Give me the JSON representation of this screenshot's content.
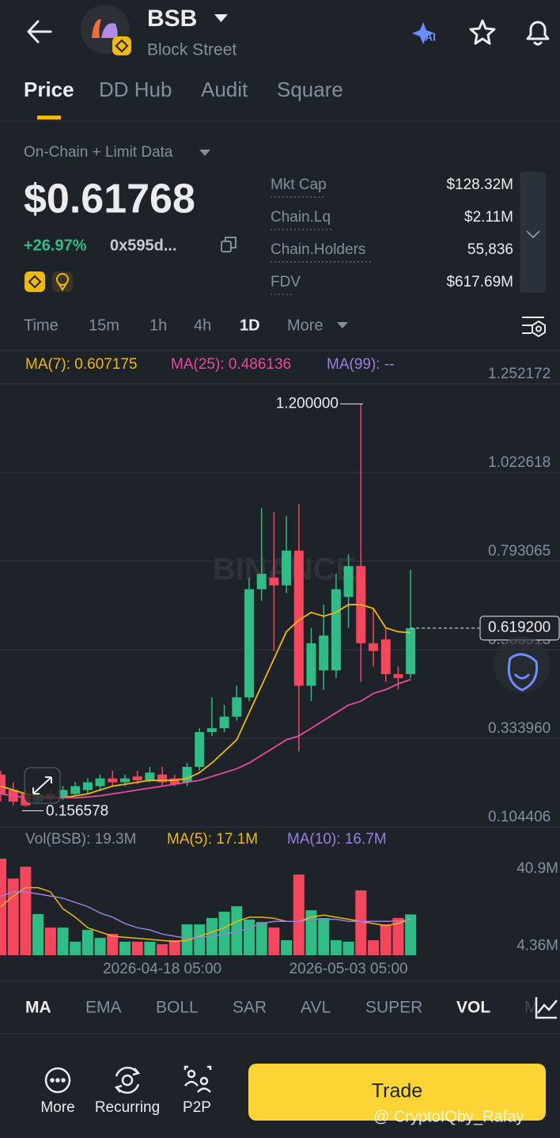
{
  "header": {
    "title": "BSB",
    "subtitle": "Block Street"
  },
  "tabs": [
    "Price",
    "DD Hub",
    "Audit",
    "Square"
  ],
  "data_source": "On-Chain + Limit Data",
  "price": "$0.61768",
  "change": "+26.97%",
  "address": "0x595d...",
  "stats": [
    {
      "label": "Mkt Cap",
      "value": "$128.32M"
    },
    {
      "label": "Chain.Lq",
      "value": "$2.11M"
    },
    {
      "label": "Chain.Holders",
      "value": "55,836"
    },
    {
      "label": "FDV",
      "value": "$617.69M"
    }
  ],
  "intervals": [
    "Time",
    "15m",
    "1h",
    "4h",
    "1D",
    "More"
  ],
  "chart_data": [
    {
      "type": "candlestick",
      "watermark": "BINANCE",
      "indicators": [
        {
          "label": "MA(7): 0.607175",
          "color": "#f0b90b"
        },
        {
          "label": "MA(25): 0.486136",
          "color": "#e84aa3"
        },
        {
          "label": "MA(99): --",
          "color": "#9b7ee0"
        }
      ],
      "categories": [
        null,
        null,
        null,
        null,
        null,
        null,
        null,
        null,
        null,
        null,
        null,
        null,
        null,
        "2026-04-18 05:00",
        null,
        null,
        null,
        null,
        null,
        null,
        null,
        null,
        null,
        null,
        null,
        null,
        null,
        null,
        "2026-05-03 05:00",
        null,
        null,
        null,
        null,
        null
      ],
      "open": [
        0.24,
        0.2,
        0.19,
        0.17,
        0.19,
        0.18,
        0.19,
        0.2,
        0.21,
        0.23,
        0.22,
        0.235,
        0.225,
        0.24,
        0.23,
        0.22,
        0.26,
        0.35,
        0.36,
        0.39,
        0.44,
        0.72,
        0.75,
        0.73,
        0.82,
        0.47,
        0.51,
        0.51,
        0.7,
        0.78,
        0.58,
        0.59,
        0.5,
        0.5
      ],
      "high": [
        0.25,
        0.22,
        0.2,
        0.21,
        0.2,
        0.21,
        0.22,
        0.23,
        0.24,
        0.25,
        0.24,
        0.25,
        0.26,
        0.26,
        0.24,
        0.27,
        0.36,
        0.44,
        0.42,
        0.47,
        0.75,
        0.93,
        0.92,
        0.91,
        0.94,
        0.62,
        0.68,
        0.76,
        0.81,
        1.2,
        0.67,
        0.62,
        0.52,
        0.77
      ],
      "low": [
        0.17,
        0.16,
        0.156578,
        0.165,
        0.17,
        0.175,
        0.185,
        0.19,
        0.2,
        0.21,
        0.21,
        0.215,
        0.22,
        0.21,
        0.21,
        0.21,
        0.25,
        0.34,
        0.35,
        0.38,
        0.43,
        0.69,
        0.56,
        0.71,
        0.3,
        0.43,
        0.46,
        0.49,
        0.62,
        0.48,
        0.52,
        0.48,
        0.46,
        0.49
      ],
      "close": [
        0.19,
        0.17,
        0.16,
        0.19,
        0.18,
        0.2,
        0.21,
        0.22,
        0.23,
        0.22,
        0.23,
        0.225,
        0.245,
        0.22,
        0.215,
        0.26,
        0.35,
        0.36,
        0.39,
        0.44,
        0.72,
        0.76,
        0.73,
        0.82,
        0.47,
        0.58,
        0.6,
        0.72,
        0.78,
        0.58,
        0.56,
        0.5,
        0.49,
        0.6192
      ],
      "up_color": "#2ebd85",
      "down_color": "#f6465d",
      "ma_lines": [
        {
          "color": "#f0b90b",
          "values": [
            0.21,
            0.2,
            0.19,
            0.185,
            0.18,
            0.18,
            0.185,
            0.19,
            0.2,
            0.21,
            0.215,
            0.22,
            0.225,
            0.225,
            0.225,
            0.23,
            0.245,
            0.27,
            0.3,
            0.33,
            0.4,
            0.47,
            0.54,
            0.61,
            0.64,
            0.66,
            0.65,
            0.66,
            0.68,
            0.68,
            0.67,
            0.62,
            0.61,
            0.607175
          ]
        },
        {
          "color": "#e84aa3",
          "values": [
            0.19,
            0.185,
            0.18,
            0.178,
            0.178,
            0.18,
            0.18,
            0.182,
            0.185,
            0.19,
            0.195,
            0.2,
            0.205,
            0.21,
            0.215,
            0.22,
            0.225,
            0.235,
            0.245,
            0.255,
            0.27,
            0.29,
            0.31,
            0.33,
            0.34,
            0.36,
            0.38,
            0.4,
            0.42,
            0.43,
            0.45,
            0.46,
            0.475,
            0.486136
          ]
        }
      ],
      "ylim": [
        0.094,
        1.338
      ],
      "yticks": [
        1.252172,
        1.022618,
        0.793065,
        0.563513,
        {
          "value": 0.33396,
          "label": "0.333960"
        },
        0.104406
      ],
      "grid": true,
      "max_label": {
        "value": 1.2,
        "label": "1.200000"
      },
      "min_label": 0.156578,
      "last_price": {
        "value": 0.6192,
        "label": "0.619200"
      }
    },
    {
      "type": "bar",
      "indicators": [
        {
          "label": "Vol(BSB): 19.3M",
          "color": "#848e9c"
        },
        {
          "label": "MA(5): 17.1M",
          "color": "#f0b90b"
        },
        {
          "label": "MA(10): 16.7M",
          "color": "#9b7ee0"
        }
      ],
      "values": [
        45.7,
        36.3,
        41.9,
        19.5,
        13.1,
        13.1,
        6.4,
        12.0,
        8.2,
        10.1,
        6.4,
        6.4,
        6.4,
        5.2,
        7.1,
        14.6,
        14.6,
        17.6,
        20.6,
        23.2,
        16.9,
        15.7,
        13.1,
        7.1,
        38.2,
        21.3,
        17.6,
        7.1,
        6.4,
        30.7,
        7.1,
        14.6,
        17.6,
        19.3
      ],
      "ma_lines": [
        {
          "color": "#f0b90b",
          "values": [
            23,
            28,
            32,
            32,
            30,
            22,
            18,
            13,
            11,
            9,
            8.5,
            8,
            7.5,
            7,
            6.5,
            7,
            9,
            11,
            13,
            16,
            18,
            18,
            17.5,
            16,
            16,
            18,
            19,
            18,
            17,
            16,
            15,
            14,
            15,
            17.1
          ]
        },
        {
          "color": "#9b7ee0",
          "values": [
            28,
            30,
            30,
            29,
            28,
            27,
            25,
            23,
            20,
            18,
            15,
            13,
            12,
            10,
            9,
            8,
            8.5,
            9,
            10,
            11,
            13,
            15,
            16,
            16,
            16,
            17,
            17,
            17,
            16,
            16,
            16,
            16,
            16.2,
            16.7
          ]
        }
      ],
      "ylim": [
        0,
        47.6
      ],
      "yticks": [
        {
          "value": 40.9,
          "label": "40.9M"
        },
        {
          "value": 4.36,
          "label": "4.36M"
        }
      ]
    }
  ],
  "indicator_tabs": [
    "MA",
    "EMA",
    "BOLL",
    "SAR",
    "AVL",
    "SUPER",
    "VOL",
    "M"
  ],
  "actions": [
    "More",
    "Recurring",
    "P2P"
  ],
  "trade": "Trade",
  "credit": "@ CryptoIQby_Rafay"
}
